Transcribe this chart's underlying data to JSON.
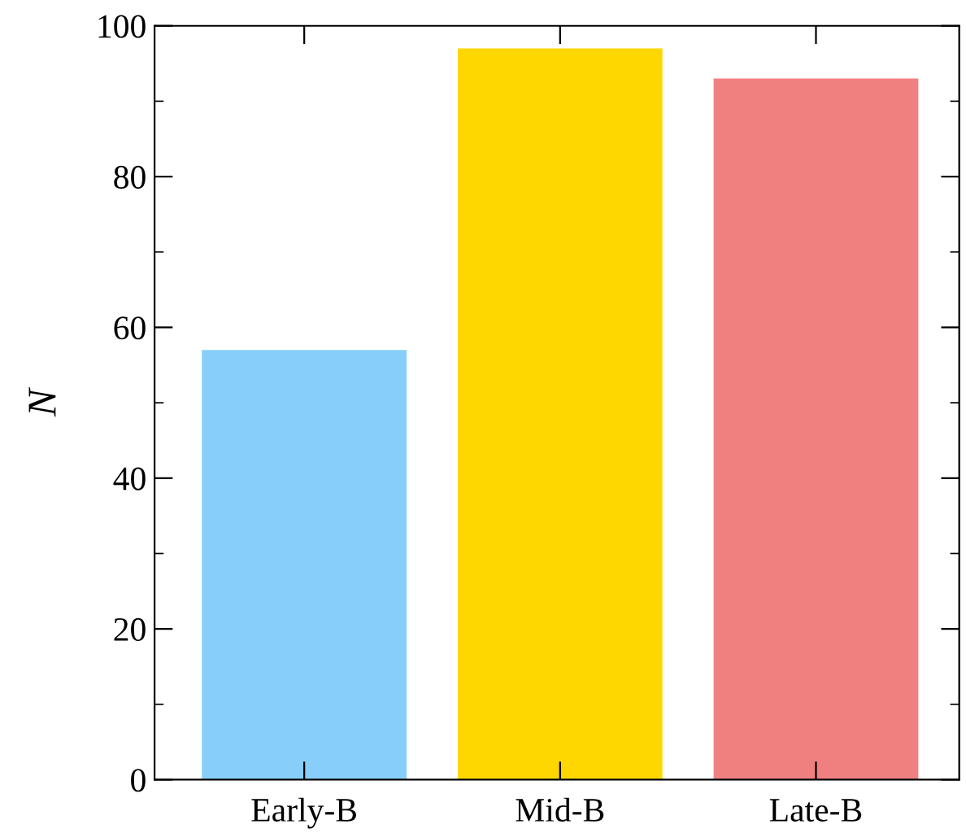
{
  "chart_data": {
    "type": "bar",
    "ylabel": "N",
    "categories": [
      "Early-B",
      "Mid-B",
      "Late-B"
    ],
    "values": [
      57,
      97,
      93
    ],
    "colors": [
      "#87cefa",
      "#ffd700",
      "#f08080"
    ],
    "ylim": [
      0,
      100
    ],
    "yticks": [
      0,
      {
        "value": 10,
        "label": null
      },
      20,
      {
        "value": 30,
        "label": null
      },
      40,
      {
        "value": 50,
        "label": null
      },
      60,
      {
        "value": 70,
        "label": null
      },
      80,
      {
        "value": 90,
        "label": null
      },
      100
    ],
    "grid": false
  }
}
